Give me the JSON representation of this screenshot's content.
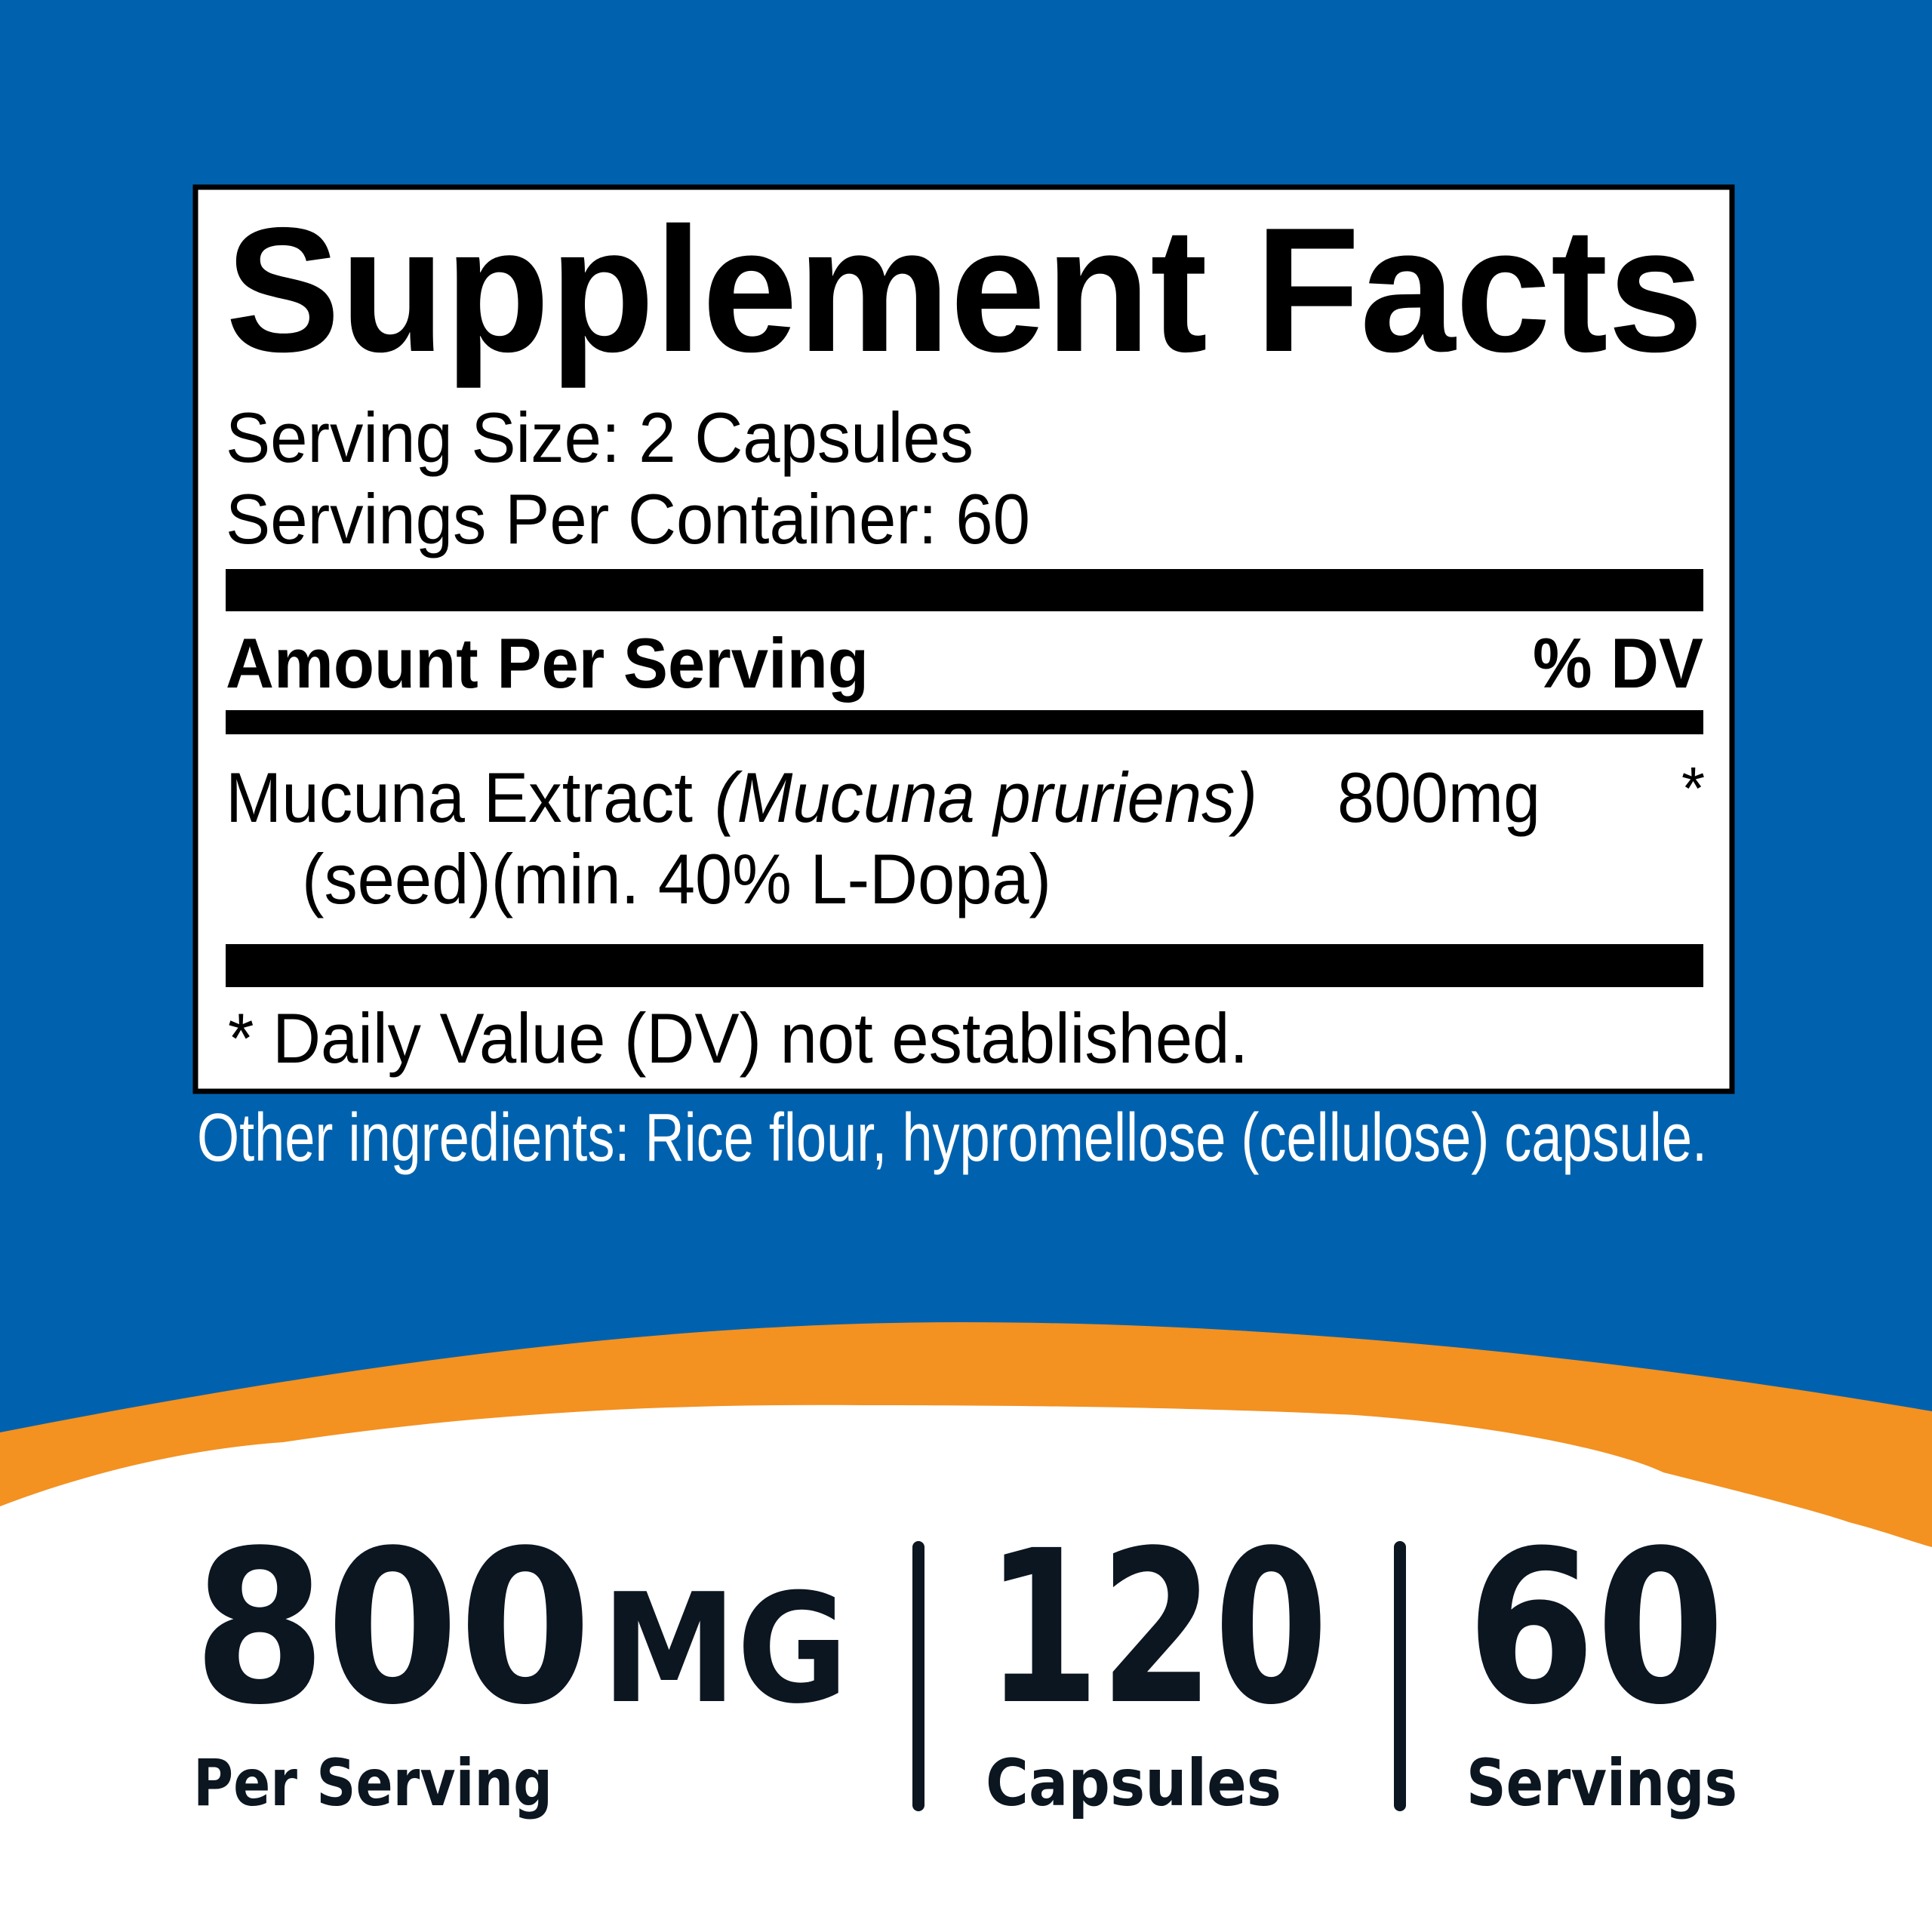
{
  "colors": {
    "background_blue": "#0062AE",
    "swoosh_orange": "#F39121",
    "label_text": "#000000",
    "stats_text": "#0B1620"
  },
  "label": {
    "title": "Supplement Facts",
    "serving_size": "Serving Size: 2 Capsules",
    "servings_per_container": "Servings Per Container: 60",
    "amount_header": "Amount Per Serving",
    "dv_header": "% DV",
    "ingredient": {
      "name": "Mucuna Extract",
      "latin_name": "(Mucuna pruriens)",
      "detail": "(seed)(min. 40% L-Dopa)",
      "amount": "800mg",
      "dv": "*"
    },
    "footnote": "* Daily Value (DV) not established."
  },
  "other_ingredients": "Other ingredients: Rice flour, hypromellose (cellulose) capsule.",
  "stats": [
    {
      "value": "800",
      "unit": "MG",
      "label": "Per Serving"
    },
    {
      "value": "120",
      "unit": "",
      "label": "Capsules"
    },
    {
      "value": "60",
      "unit": "",
      "label": "Servings"
    }
  ]
}
